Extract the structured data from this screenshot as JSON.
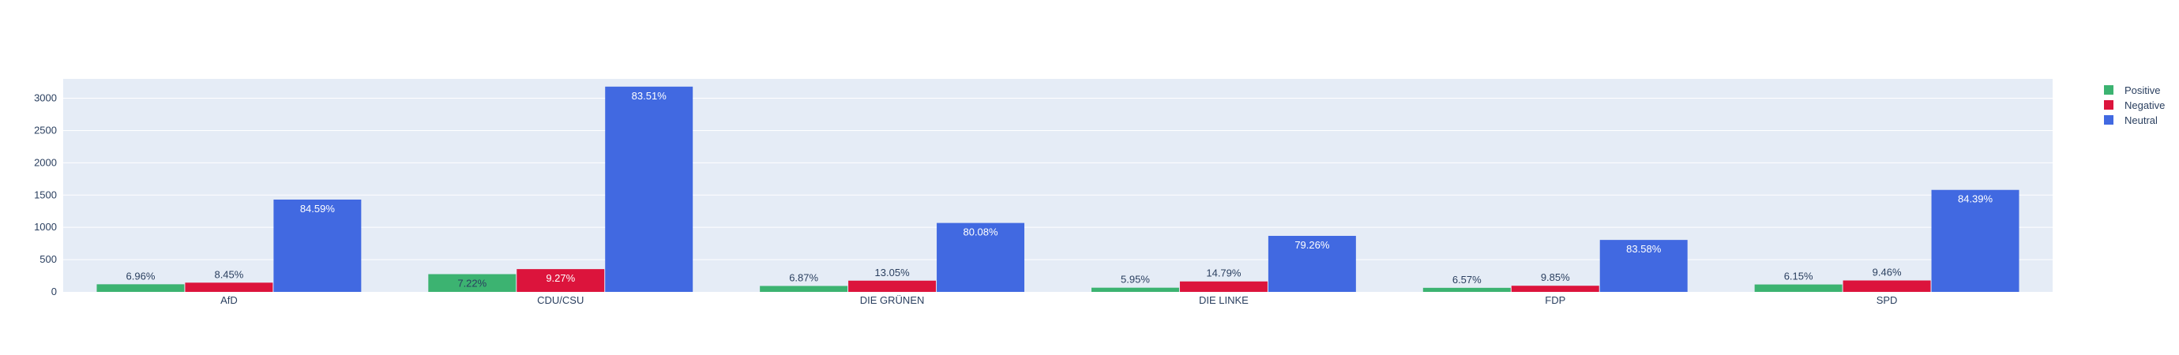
{
  "chart_data": {
    "type": "bar",
    "categories": [
      "AfD",
      "CDU/CSU",
      "DIE GRÜNEN",
      "DIE LINKE",
      "FDP",
      "SPD"
    ],
    "ylim": [
      0,
      3300
    ],
    "yticks": [
      0,
      500,
      1000,
      1500,
      2000,
      2500,
      3000
    ],
    "grid": true,
    "legend_position": "top-right",
    "series": [
      {
        "name": "Positive",
        "color": "#3cb371",
        "values": [
          118,
          275,
          92,
          65,
          63,
          115
        ],
        "labels": [
          "6.96%",
          "7.22%",
          "6.87%",
          "5.95%",
          "6.57%",
          "6.15%"
        ]
      },
      {
        "name": "Negative",
        "color": "#dc143c",
        "values": [
          143,
          353,
          174,
          162,
          95,
          177
        ],
        "labels": [
          "8.45%",
          "9.27%",
          "13.05%",
          "14.79%",
          "9.85%",
          "9.46%"
        ]
      },
      {
        "name": "Neutral",
        "color": "#4169e1",
        "values": [
          1430,
          3180,
          1068,
          868,
          805,
          1580
        ],
        "labels": [
          "84.59%",
          "83.51%",
          "80.08%",
          "79.26%",
          "83.58%",
          "84.39%"
        ]
      }
    ]
  }
}
